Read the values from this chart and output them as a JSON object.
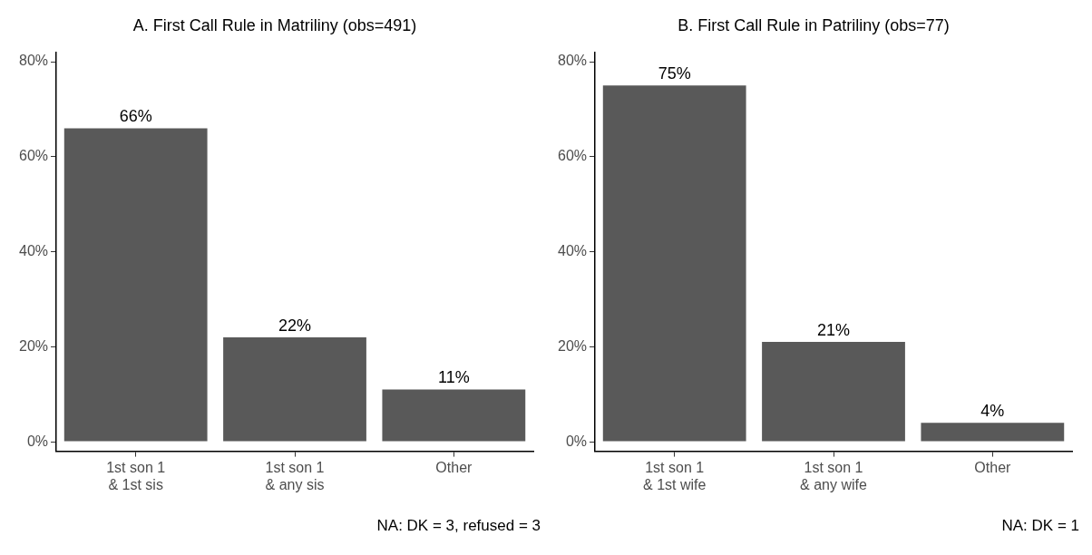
{
  "chart_data": [
    {
      "type": "bar",
      "title": "A. First Call Rule in Matriliny (obs=491)",
      "categories": [
        "1st son 1\n& 1st sis",
        "1st son 1\n& any sis",
        "Other"
      ],
      "values": [
        66,
        22,
        11
      ],
      "value_labels": [
        "66%",
        "22%",
        "11%"
      ],
      "color": "#595959",
      "ylim": [
        -2,
        82
      ],
      "yticks": [
        {
          "value": 0,
          "label": "0%"
        },
        {
          "value": 20,
          "label": "20%"
        },
        {
          "value": 40,
          "label": "40%"
        },
        {
          "value": 60,
          "label": "60%"
        },
        {
          "value": 80,
          "label": "80%"
        }
      ],
      "grid": false,
      "legend": false,
      "annotations": [
        "NA: DK = 3, refused = 3"
      ]
    },
    {
      "type": "bar",
      "title": "B. First Call Rule in Patriliny (obs=77)",
      "categories": [
        "1st son 1\n& 1st wife",
        "1st son 1\n& any wife",
        "Other"
      ],
      "values": [
        75,
        21,
        4
      ],
      "value_labels": [
        "75%",
        "21%",
        "4%"
      ],
      "color": "#595959",
      "ylim": [
        -2,
        82
      ],
      "yticks": [
        {
          "value": 0,
          "label": "0%"
        },
        {
          "value": 20,
          "label": "20%"
        },
        {
          "value": 40,
          "label": "40%"
        },
        {
          "value": 60,
          "label": "60%"
        },
        {
          "value": 80,
          "label": "80%"
        }
      ],
      "grid": false,
      "legend": false,
      "annotations": [
        "NA: DK = 1"
      ]
    }
  ]
}
